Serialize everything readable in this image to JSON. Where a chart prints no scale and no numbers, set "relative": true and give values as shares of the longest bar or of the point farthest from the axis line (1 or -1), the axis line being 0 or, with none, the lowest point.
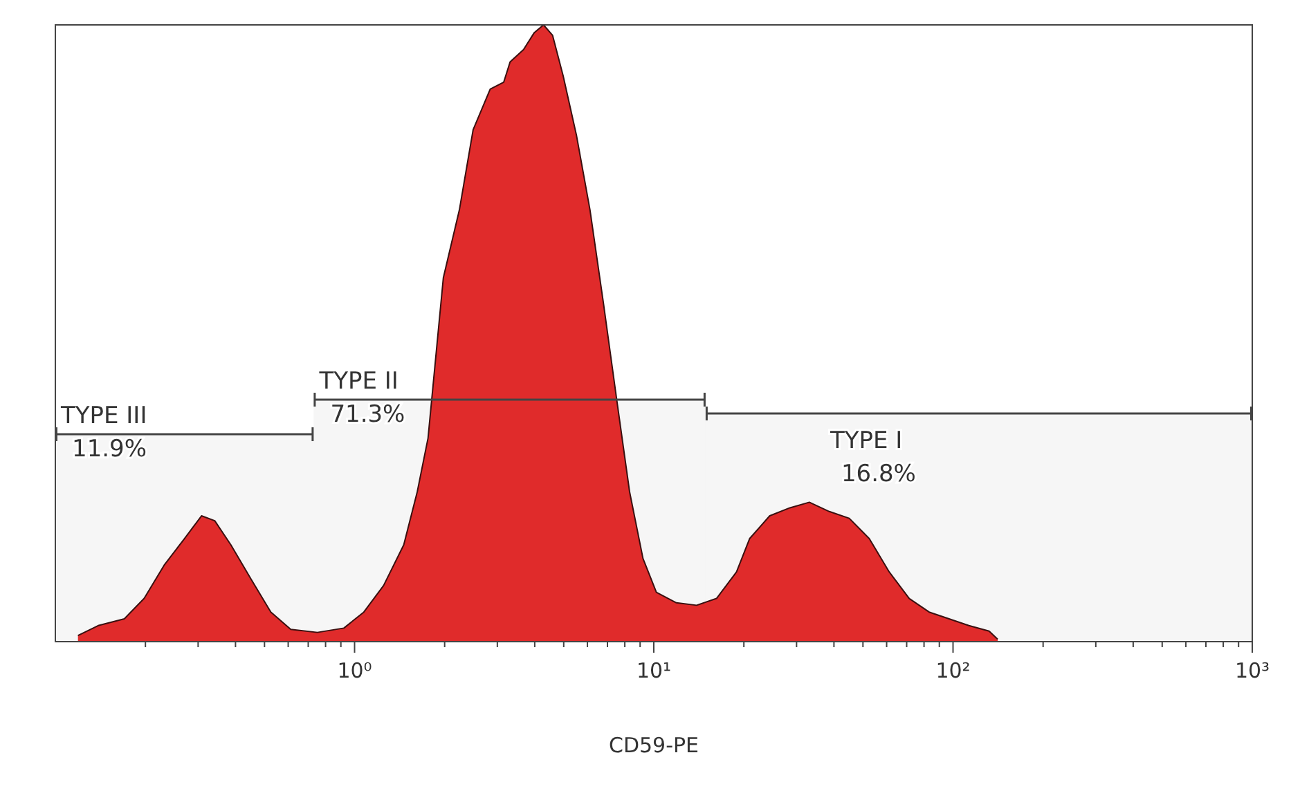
{
  "chart_data": {
    "type": "area",
    "xlabel": "CD59-PE",
    "log": "x",
    "relative": true,
    "xlim": [
      0.1,
      1000
    ],
    "xticks": [
      {
        "value": 0.2,
        "label": null
      },
      {
        "value": 0.3,
        "label": null
      },
      {
        "value": 0.4,
        "label": null
      },
      {
        "value": 0.5,
        "label": null
      },
      {
        "value": 0.6,
        "label": null
      },
      {
        "value": 0.7,
        "label": null
      },
      {
        "value": 0.8,
        "label": null
      },
      {
        "value": 0.9,
        "label": null
      },
      {
        "value": 1,
        "label": "10⁰"
      },
      {
        "value": 2,
        "label": null
      },
      {
        "value": 3,
        "label": null
      },
      {
        "value": 4,
        "label": null
      },
      {
        "value": 5,
        "label": null
      },
      {
        "value": 6,
        "label": null
      },
      {
        "value": 7,
        "label": null
      },
      {
        "value": 8,
        "label": null
      },
      {
        "value": 9,
        "label": null
      },
      {
        "value": 10,
        "label": "10¹"
      },
      {
        "value": 20,
        "label": null
      },
      {
        "value": 30,
        "label": null
      },
      {
        "value": 40,
        "label": null
      },
      {
        "value": 50,
        "label": null
      },
      {
        "value": 60,
        "label": null
      },
      {
        "value": 70,
        "label": null
      },
      {
        "value": 80,
        "label": null
      },
      {
        "value": 90,
        "label": null
      },
      {
        "value": 100,
        "label": "10²"
      },
      {
        "value": 200,
        "label": null
      },
      {
        "value": 300,
        "label": null
      },
      {
        "value": 400,
        "label": null
      },
      {
        "value": 500,
        "label": null
      },
      {
        "value": 600,
        "label": null
      },
      {
        "value": 700,
        "label": null
      },
      {
        "value": 800,
        "label": null
      },
      {
        "value": 900,
        "label": null
      },
      {
        "value": 1000,
        "label": "10³"
      }
    ],
    "x": [
      0.119,
      0.139,
      0.17,
      0.198,
      0.231,
      0.27,
      0.308,
      0.341,
      0.386,
      0.45,
      0.525,
      0.612,
      0.751,
      0.921,
      1.074,
      1.25,
      1.46,
      1.62,
      1.76,
      1.98,
      2.24,
      2.49,
      2.84,
      3.15,
      3.31,
      3.67,
      3.98,
      4.28,
      4.59,
      4.98,
      5.52,
      6.12,
      6.79,
      7.5,
      8.3,
      9.2,
      10.2,
      11.9,
      13.9,
      16.2,
      18.9,
      20.9,
      24.4,
      28.5,
      33.1,
      38.6,
      45,
      52.5,
      61.2,
      71.4,
      83.2,
      97,
      113,
      132,
      141
    ],
    "series": [
      {
        "color": "#e02b2b",
        "values": [
          0.01,
          0.026,
          0.037,
          0.07,
          0.124,
          0.167,
          0.204,
          0.196,
          0.157,
          0.102,
          0.048,
          0.02,
          0.015,
          0.022,
          0.048,
          0.091,
          0.157,
          0.243,
          0.33,
          0.59,
          0.7,
          0.83,
          0.896,
          0.907,
          0.94,
          0.96,
          0.987,
          1,
          0.983,
          0.917,
          0.82,
          0.7,
          0.548,
          0.396,
          0.243,
          0.135,
          0.08,
          0.063,
          0.059,
          0.07,
          0.113,
          0.167,
          0.204,
          0.217,
          0.226,
          0.211,
          0.2,
          0.167,
          0.113,
          0.07,
          0.048,
          0.037,
          0.026,
          0.017,
          0.004
        ]
      }
    ],
    "bands": [
      {
        "axis": "x",
        "from": 0.1,
        "to": 0.73,
        "label": "TYPE III"
      },
      {
        "axis": "x",
        "from": 0.73,
        "to": 14.9,
        "label": "TYPE II"
      },
      {
        "axis": "x",
        "from": 14.9,
        "to": 1000,
        "label": "TYPE I"
      }
    ],
    "annotations": [
      "11.9%",
      "71.3%",
      "16.8%"
    ],
    "grid": false
  }
}
